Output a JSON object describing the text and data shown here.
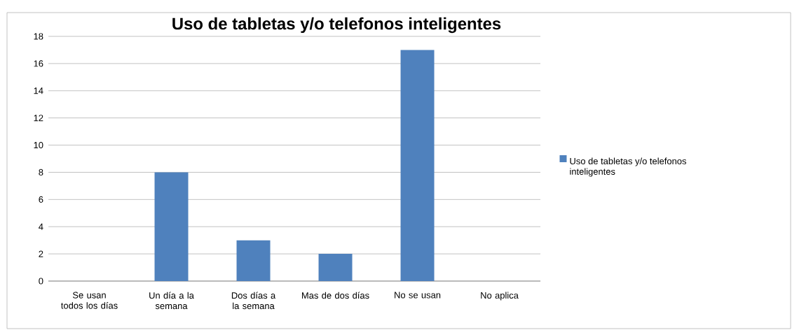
{
  "chart_data": {
    "type": "bar",
    "title": "Uso de tabletas y/o telefonos inteligentes",
    "categories": [
      "Se usan todos los días",
      "Un día a la semana",
      "Dos días a la semana",
      "Mas de dos días",
      "No se usan",
      "No aplica"
    ],
    "series": [
      {
        "name": "Uso de tabletas y/o telefonos inteligentes",
        "color": "#4f81bd",
        "values": [
          0,
          8,
          3,
          2,
          17,
          0
        ]
      }
    ],
    "ylim": [
      0,
      18
    ],
    "yticks": [
      0,
      2,
      4,
      6,
      8,
      10,
      12,
      14,
      16,
      18
    ],
    "grid": "y",
    "legend": "right"
  }
}
